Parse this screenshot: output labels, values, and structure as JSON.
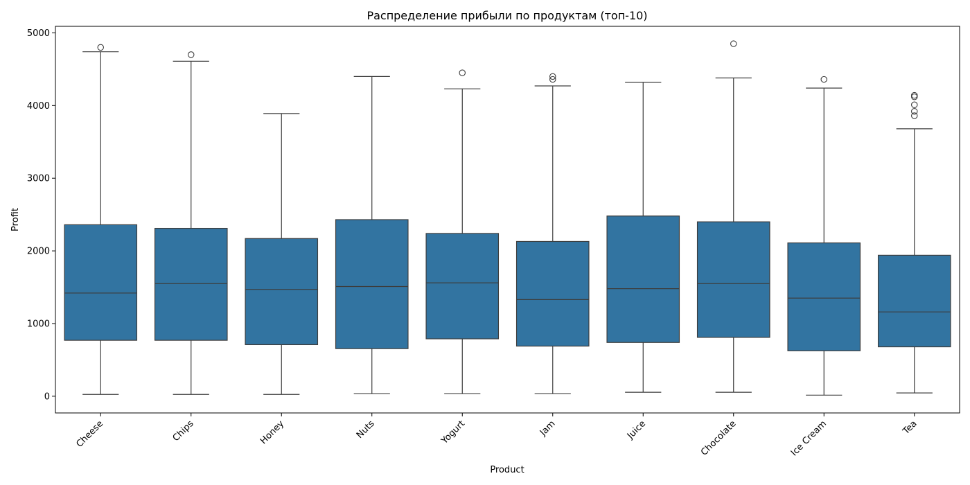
{
  "chart_data": {
    "type": "boxplot",
    "title": "Распределение прибыли по продуктам (топ-10)",
    "xlabel": "Product",
    "ylabel": "Profit",
    "ylim": [
      -230,
      5090
    ],
    "yticks": [
      0,
      1000,
      2000,
      3000,
      4000,
      5000
    ],
    "grid": false,
    "box_color": "#3274a1",
    "line_color": "#3d3d3d",
    "categories": [
      "Cheese",
      "Chips",
      "Honey",
      "Nuts",
      "Yogurt",
      "Jam",
      "Juice",
      "Chocolate",
      "Ice Cream",
      "Tea"
    ],
    "boxes": [
      {
        "category": "Cheese",
        "whisker_low": 25,
        "q1": 770,
        "median": 1420,
        "q3": 2360,
        "whisker_high": 4740,
        "outliers": [
          4800
        ]
      },
      {
        "category": "Chips",
        "whisker_low": 25,
        "q1": 770,
        "median": 1550,
        "q3": 2310,
        "whisker_high": 4610,
        "outliers": [
          4700
        ]
      },
      {
        "category": "Honey",
        "whisker_low": 25,
        "q1": 710,
        "median": 1470,
        "q3": 2170,
        "whisker_high": 3890,
        "outliers": []
      },
      {
        "category": "Nuts",
        "whisker_low": 35,
        "q1": 655,
        "median": 1510,
        "q3": 2430,
        "whisker_high": 4400,
        "outliers": []
      },
      {
        "category": "Yogurt",
        "whisker_low": 35,
        "q1": 790,
        "median": 1560,
        "q3": 2240,
        "whisker_high": 4230,
        "outliers": [
          4450
        ]
      },
      {
        "category": "Jam",
        "whisker_low": 35,
        "q1": 690,
        "median": 1330,
        "q3": 2130,
        "whisker_high": 4270,
        "outliers": [
          4360,
          4400
        ]
      },
      {
        "category": "Juice",
        "whisker_low": 55,
        "q1": 740,
        "median": 1480,
        "q3": 2480,
        "whisker_high": 4320,
        "outliers": []
      },
      {
        "category": "Chocolate",
        "whisker_low": 55,
        "q1": 810,
        "median": 1550,
        "q3": 2400,
        "whisker_high": 4380,
        "outliers": [
          4850
        ]
      },
      {
        "category": "Ice Cream",
        "whisker_low": 15,
        "q1": 625,
        "median": 1350,
        "q3": 2110,
        "whisker_high": 4240,
        "outliers": [
          4360
        ]
      },
      {
        "category": "Tea",
        "whisker_low": 45,
        "q1": 680,
        "median": 1160,
        "q3": 1940,
        "whisker_high": 3680,
        "outliers": [
          3860,
          3920,
          4010,
          4120,
          4140
        ]
      }
    ]
  }
}
